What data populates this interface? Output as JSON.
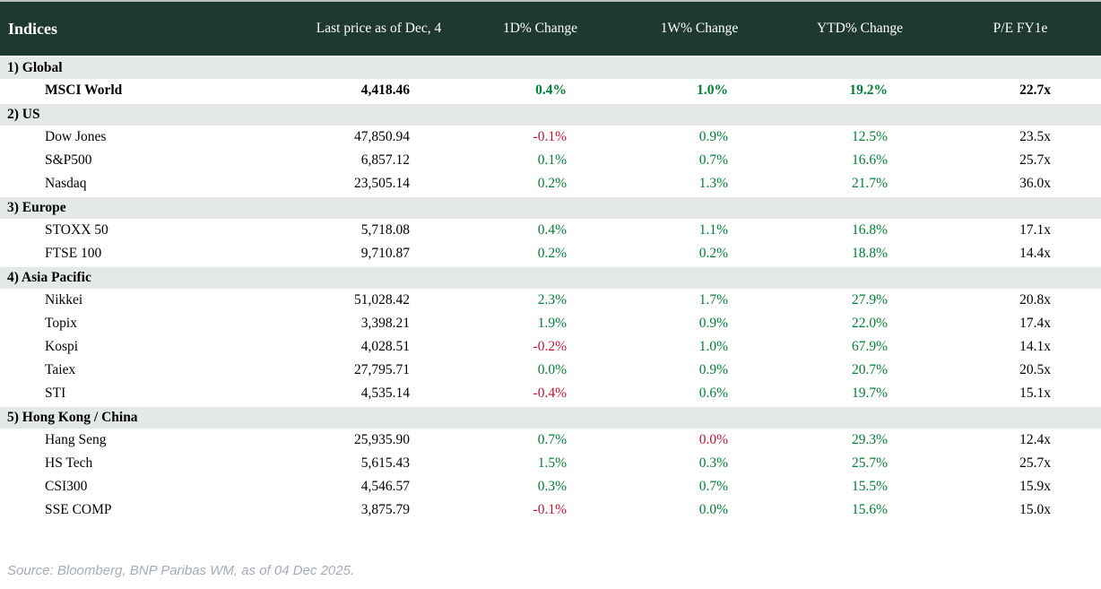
{
  "colors": {
    "header_bg": "#1e3832",
    "section_bg": "#e4e9e6",
    "positive": "#008034",
    "negative": "#c01330",
    "footer_text": "#a5acb5"
  },
  "footer": {
    "source": "Source: Bloomberg, BNP Paribas WM, as of 04 Dec 2025."
  },
  "chart_data": {
    "type": "table",
    "title": "Indices",
    "columns": [
      "Indices",
      "Last price as of Dec, 4",
      "1D% Change",
      "1W% Change",
      "YTD% Change",
      "P/E FY1e"
    ],
    "sections": [
      {
        "label": "1) Global",
        "rows": [
          {
            "name": "MSCI World",
            "bold": true,
            "last_price": "4,418.46",
            "chg_1d": {
              "v": "0.4%",
              "c": "pos"
            },
            "chg_1w": {
              "v": "1.0%",
              "c": "pos"
            },
            "chg_ytd": {
              "v": "19.2%",
              "c": "pos"
            },
            "pe": "22.7x"
          }
        ]
      },
      {
        "label": "2) US",
        "rows": [
          {
            "name": "Dow Jones",
            "bold": false,
            "last_price": "47,850.94",
            "chg_1d": {
              "v": "-0.1%",
              "c": "neg"
            },
            "chg_1w": {
              "v": "0.9%",
              "c": "pos"
            },
            "chg_ytd": {
              "v": "12.5%",
              "c": "pos"
            },
            "pe": "23.5x"
          },
          {
            "name": "S&P500",
            "bold": false,
            "last_price": "6,857.12",
            "chg_1d": {
              "v": "0.1%",
              "c": "pos"
            },
            "chg_1w": {
              "v": "0.7%",
              "c": "pos"
            },
            "chg_ytd": {
              "v": "16.6%",
              "c": "pos"
            },
            "pe": "25.7x"
          },
          {
            "name": "Nasdaq",
            "bold": false,
            "last_price": "23,505.14",
            "chg_1d": {
              "v": "0.2%",
              "c": "pos"
            },
            "chg_1w": {
              "v": "1.3%",
              "c": "pos"
            },
            "chg_ytd": {
              "v": "21.7%",
              "c": "pos"
            },
            "pe": "36.0x"
          }
        ]
      },
      {
        "label": "3) Europe",
        "rows": [
          {
            "name": "STOXX 50",
            "bold": false,
            "last_price": "5,718.08",
            "chg_1d": {
              "v": "0.4%",
              "c": "pos"
            },
            "chg_1w": {
              "v": "1.1%",
              "c": "pos"
            },
            "chg_ytd": {
              "v": "16.8%",
              "c": "pos"
            },
            "pe": "17.1x"
          },
          {
            "name": "FTSE 100",
            "bold": false,
            "last_price": "9,710.87",
            "chg_1d": {
              "v": "0.2%",
              "c": "pos"
            },
            "chg_1w": {
              "v": "0.2%",
              "c": "pos"
            },
            "chg_ytd": {
              "v": "18.8%",
              "c": "pos"
            },
            "pe": "14.4x"
          }
        ]
      },
      {
        "label": "4) Asia Pacific",
        "rows": [
          {
            "name": "Nikkei",
            "bold": false,
            "last_price": "51,028.42",
            "chg_1d": {
              "v": "2.3%",
              "c": "pos"
            },
            "chg_1w": {
              "v": "1.7%",
              "c": "pos"
            },
            "chg_ytd": {
              "v": "27.9%",
              "c": "pos"
            },
            "pe": "20.8x"
          },
          {
            "name": "Topix",
            "bold": false,
            "last_price": "3,398.21",
            "chg_1d": {
              "v": "1.9%",
              "c": "pos"
            },
            "chg_1w": {
              "v": "0.9%",
              "c": "pos"
            },
            "chg_ytd": {
              "v": "22.0%",
              "c": "pos"
            },
            "pe": "17.4x"
          },
          {
            "name": "Kospi",
            "bold": false,
            "last_price": "4,028.51",
            "chg_1d": {
              "v": "-0.2%",
              "c": "neg"
            },
            "chg_1w": {
              "v": "1.0%",
              "c": "pos"
            },
            "chg_ytd": {
              "v": "67.9%",
              "c": "pos"
            },
            "pe": "14.1x"
          },
          {
            "name": "Taiex",
            "bold": false,
            "last_price": "27,795.71",
            "chg_1d": {
              "v": "0.0%",
              "c": "pos"
            },
            "chg_1w": {
              "v": "0.9%",
              "c": "pos"
            },
            "chg_ytd": {
              "v": "20.7%",
              "c": "pos"
            },
            "pe": "20.5x"
          },
          {
            "name": "STI",
            "bold": false,
            "last_price": "4,535.14",
            "chg_1d": {
              "v": "-0.4%",
              "c": "neg"
            },
            "chg_1w": {
              "v": "0.6%",
              "c": "pos"
            },
            "chg_ytd": {
              "v": "19.7%",
              "c": "pos"
            },
            "pe": "15.1x"
          }
        ]
      },
      {
        "label": "5) Hong Kong / China",
        "rows": [
          {
            "name": "Hang Seng",
            "bold": false,
            "last_price": "25,935.90",
            "chg_1d": {
              "v": "0.7%",
              "c": "pos"
            },
            "chg_1w": {
              "v": "0.0%",
              "c": "neg"
            },
            "chg_ytd": {
              "v": "29.3%",
              "c": "pos"
            },
            "pe": "12.4x"
          },
          {
            "name": "HS Tech",
            "bold": false,
            "last_price": "5,615.43",
            "chg_1d": {
              "v": "1.5%",
              "c": "pos"
            },
            "chg_1w": {
              "v": "0.3%",
              "c": "pos"
            },
            "chg_ytd": {
              "v": "25.7%",
              "c": "pos"
            },
            "pe": "25.7x"
          },
          {
            "name": "CSI300",
            "bold": false,
            "last_price": "4,546.57",
            "chg_1d": {
              "v": "0.3%",
              "c": "pos"
            },
            "chg_1w": {
              "v": "0.7%",
              "c": "pos"
            },
            "chg_ytd": {
              "v": "15.5%",
              "c": "pos"
            },
            "pe": "15.9x"
          },
          {
            "name": "SSE COMP",
            "bold": false,
            "last_price": "3,875.79",
            "chg_1d": {
              "v": "-0.1%",
              "c": "neg"
            },
            "chg_1w": {
              "v": "0.0%",
              "c": "pos"
            },
            "chg_ytd": {
              "v": "15.6%",
              "c": "pos"
            },
            "pe": "15.0x"
          }
        ]
      }
    ]
  }
}
